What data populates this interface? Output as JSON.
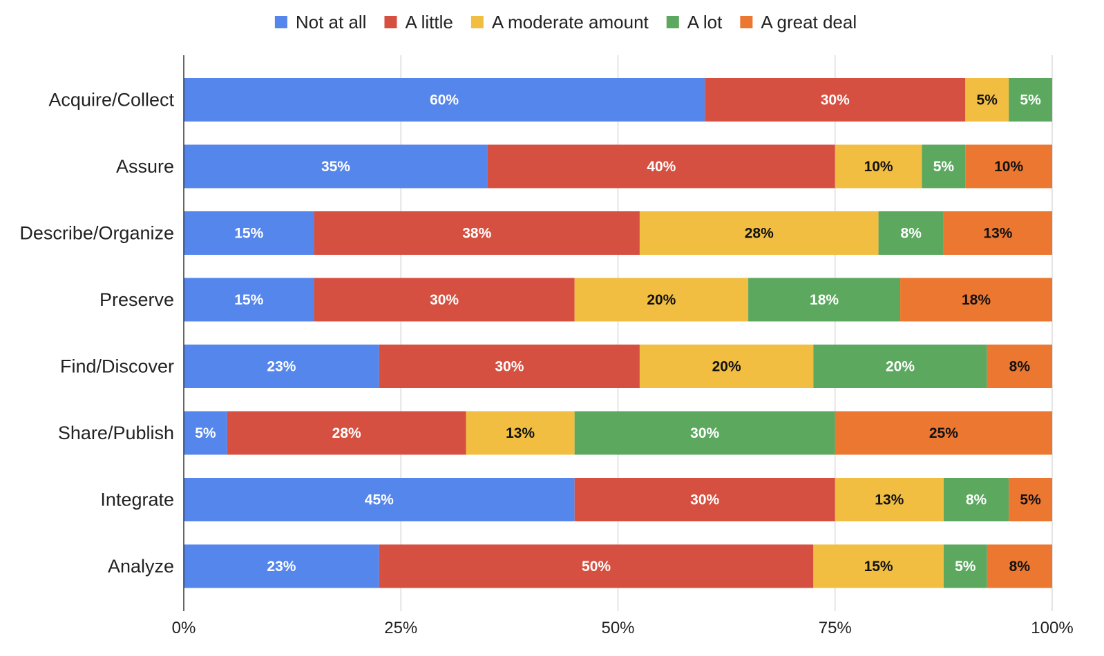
{
  "chart_data": {
    "type": "bar",
    "orientation": "horizontal",
    "stacked": true,
    "categories": [
      "Acquire/Collect",
      "Assure",
      "Describe/Organize",
      "Preserve",
      "Find/Discover",
      "Share/Publish",
      "Integrate",
      "Analyze"
    ],
    "series": [
      {
        "name": "Not at all",
        "color": "#5586EC",
        "label_color": "#ffffff",
        "values": [
          60,
          35,
          15,
          15,
          22.5,
          5,
          45,
          22.5
        ],
        "labels": [
          "60%",
          "35%",
          "15%",
          "15%",
          "23%",
          "5%",
          "45%",
          "23%"
        ]
      },
      {
        "name": "A little",
        "color": "#D65041",
        "label_color": "#ffffff",
        "values": [
          30,
          40,
          37.5,
          30,
          30,
          27.5,
          30,
          50
        ],
        "labels": [
          "30%",
          "40%",
          "38%",
          "30%",
          "30%",
          "28%",
          "30%",
          "50%"
        ]
      },
      {
        "name": "A moderate amount",
        "color": "#F1BE42",
        "label_color": "#111111",
        "values": [
          5,
          10,
          27.5,
          20,
          20,
          12.5,
          12.5,
          15
        ],
        "labels": [
          "5%",
          "10%",
          "28%",
          "20%",
          "20%",
          "13%",
          "13%",
          "15%"
        ]
      },
      {
        "name": "A lot",
        "color": "#5CA85F",
        "label_color": "#ffffff",
        "values": [
          5,
          5,
          7.5,
          17.5,
          20,
          30,
          7.5,
          5
        ],
        "labels": [
          "5%",
          "5%",
          "8%",
          "18%",
          "20%",
          "30%",
          "8%",
          "5%"
        ]
      },
      {
        "name": "A great deal",
        "color": "#EC7731",
        "label_color": "#111111",
        "values": [
          0,
          10,
          12.5,
          17.5,
          7.5,
          25,
          5,
          7.5
        ],
        "labels": [
          "",
          "10%",
          "13%",
          "18%",
          "8%",
          "25%",
          "5%",
          "8%"
        ]
      }
    ],
    "x_ticks": [
      "0%",
      "25%",
      "50%",
      "75%",
      "100%"
    ],
    "xlim": [
      0,
      100
    ],
    "grid": true,
    "legend_position": "top",
    "title": "",
    "xlabel": "",
    "ylabel": ""
  }
}
